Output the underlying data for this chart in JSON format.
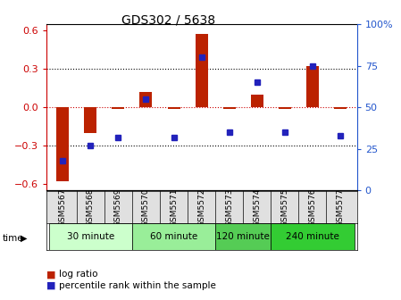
{
  "title": "GDS302 / 5638",
  "samples": [
    "GSM5567",
    "GSM5568",
    "GSM5569",
    "GSM5570",
    "GSM5571",
    "GSM5572",
    "GSM5573",
    "GSM5574",
    "GSM5575",
    "GSM5576",
    "GSM5577"
  ],
  "log_ratios": [
    -0.58,
    -0.2,
    -0.01,
    0.12,
    -0.01,
    0.57,
    -0.01,
    0.1,
    -0.01,
    0.32,
    -0.01
  ],
  "percentile_ranks": [
    18,
    27,
    32,
    55,
    32,
    80,
    35,
    65,
    35,
    75,
    33
  ],
  "group_spans": [
    {
      "label": "30 minute",
      "start": 0,
      "end": 2,
      "color": "#ccffcc"
    },
    {
      "label": "60 minute",
      "start": 3,
      "end": 5,
      "color": "#99ee99"
    },
    {
      "label": "120 minute",
      "start": 6,
      "end": 7,
      "color": "#55cc55"
    },
    {
      "label": "240 minute",
      "start": 8,
      "end": 10,
      "color": "#33cc33"
    }
  ],
  "bar_color": "#bb2200",
  "dot_color": "#2222bb",
  "ylim_left": [
    -0.65,
    0.65
  ],
  "yticks_left": [
    -0.6,
    -0.3,
    0.0,
    0.3,
    0.6
  ],
  "ylim_right": [
    0,
    100
  ],
  "yticks_right": [
    0,
    25,
    50,
    75,
    100
  ],
  "legend_log_ratio": "log ratio",
  "legend_percentile": "percentile rank within the sample",
  "time_label": "time",
  "hline_color": "#cc0000",
  "tick_label_color_left": "#cc0000",
  "tick_label_color_right": "#2255cc"
}
